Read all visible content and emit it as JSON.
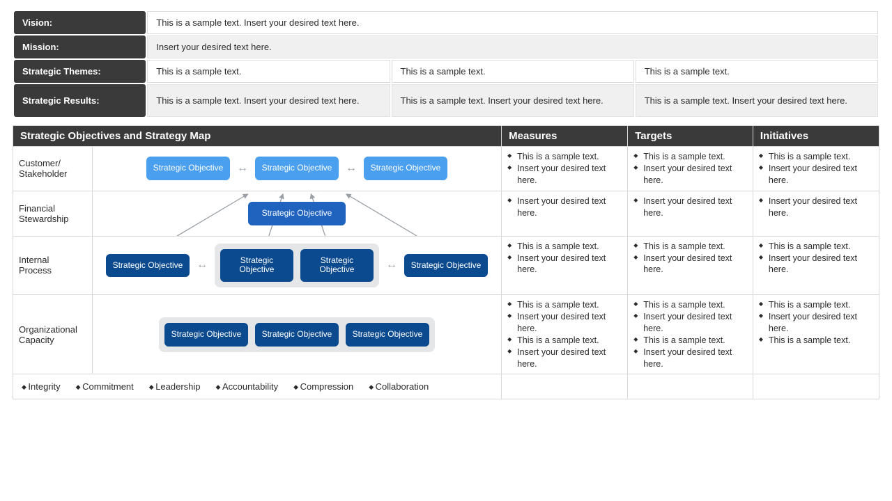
{
  "colors": {
    "header_bg": "#3a3a3a",
    "header_fg": "#ffffff",
    "border": "#d8d8d8",
    "zebra_grey": "#f0f0f0",
    "obj_light": "#4aa0ee",
    "obj_mid": "#1f63bf",
    "obj_dark": "#0b4a8f",
    "group_bg": "#e4e6e8",
    "arrow": "#9aa0a6"
  },
  "top": {
    "vision": {
      "label": "Vision:",
      "text": "This is a sample text. Insert your desired text here."
    },
    "mission": {
      "label": "Mission:",
      "text": "Insert your desired text here."
    },
    "themes": {
      "label": "Strategic Themes:",
      "cells": [
        "This is a sample text.",
        "This is a sample text.",
        "This is a sample text."
      ]
    },
    "results": {
      "label": "Strategic Results:",
      "cells": [
        "This is a sample text. Insert your desired text here.",
        "This is a sample text. Insert your desired text here.",
        "This is a sample text. Insert your desired text here."
      ]
    }
  },
  "bottom": {
    "title": "Strategic  Objectives and Strategy Map",
    "cols": [
      "Measures",
      "Targets",
      "Initiatives"
    ],
    "rows": [
      {
        "label": "Customer/\nStakeholder",
        "objectives": {
          "style": "light",
          "items": [
            "Strategic Objective",
            "Strategic Objective",
            "Strategic Objective"
          ]
        },
        "measures": [
          "This is a sample text.",
          "Insert your desired text here."
        ],
        "targets": [
          "This is a sample text.",
          "Insert your desired text here."
        ],
        "initiatives": [
          "This is a sample text.",
          "Insert your desired text here."
        ]
      },
      {
        "label": "Financial\nStewardship",
        "objectives": {
          "style": "mid",
          "items": [
            "Strategic Objective"
          ]
        },
        "measures": [
          "Insert your desired text here."
        ],
        "targets": [
          "Insert your desired text here."
        ],
        "initiatives": [
          "Insert your desired text here."
        ]
      },
      {
        "label": "Internal\nProcess",
        "objectives": {
          "style": "dark",
          "grouped": [
            1,
            2
          ],
          "items": [
            "Strategic Objective",
            "Strategic Objective",
            "Strategic Objective",
            "Strategic Objective"
          ]
        },
        "measures": [
          "This is a sample text.",
          "Insert your desired text here."
        ],
        "targets": [
          "This is a sample text.",
          "Insert your desired text here."
        ],
        "initiatives": [
          "This is a sample text.",
          "Insert your desired text here."
        ]
      },
      {
        "label": "Organizational\nCapacity",
        "objectives": {
          "style": "dark",
          "grouped": [
            0,
            1,
            2
          ],
          "items": [
            "Strategic Objective",
            "Strategic Objective",
            "Strategic Objective"
          ]
        },
        "measures": [
          "This is a sample text.",
          "Insert your desired text here.",
          "This is a sample text.",
          "Insert your desired text here."
        ],
        "targets": [
          "This is a sample text.",
          "Insert your desired text here.",
          "This is a sample text.",
          "Insert your desired text here."
        ],
        "initiatives": [
          "This is a sample text.",
          "Insert your desired text here.",
          "This is a sample text."
        ]
      }
    ],
    "values": [
      "Integrity",
      "Commitment",
      "Leadership",
      "Accountability",
      "Compression",
      "Collaboration"
    ]
  }
}
